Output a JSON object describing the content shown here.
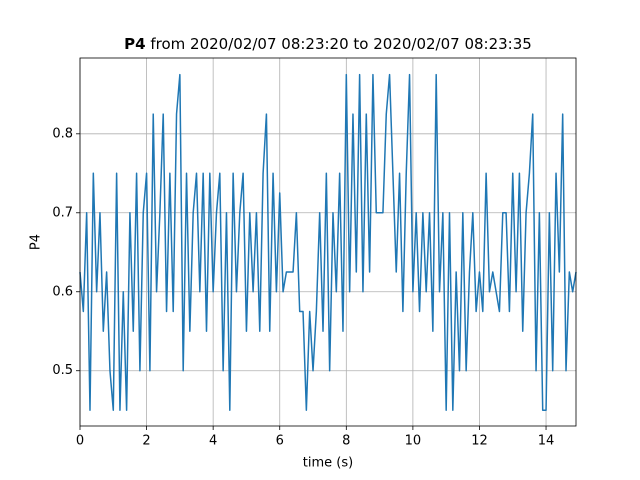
{
  "chart_data": {
    "type": "line",
    "title_bold": "P4",
    "title": "from 2020/02/07 08:23:20 to 2020/02/07 08:23:35",
    "xlabel": "time (s)",
    "ylabel": "P4",
    "x": [
      0,
      0.1,
      0.2,
      0.3,
      0.4,
      0.5,
      0.6,
      0.7,
      0.8,
      0.9,
      1,
      1.1,
      1.2,
      1.3,
      1.4,
      1.5,
      1.6,
      1.7,
      1.8,
      1.9,
      2,
      2.1,
      2.2,
      2.3,
      2.4,
      2.5,
      2.6,
      2.7,
      2.8,
      2.9,
      3,
      3.1,
      3.2,
      3.3,
      3.4,
      3.5,
      3.6,
      3.7,
      3.8,
      3.9,
      4,
      4.1,
      4.2,
      4.3,
      4.4,
      4.5,
      4.6,
      4.7,
      4.8,
      4.9,
      5,
      5.1,
      5.2,
      5.3,
      5.4,
      5.5,
      5.6,
      5.7,
      5.8,
      5.9,
      6,
      6.1,
      6.2,
      6.3,
      6.4,
      6.5,
      6.6,
      6.7,
      6.8,
      6.9,
      7,
      7.1,
      7.2,
      7.3,
      7.4,
      7.5,
      7.6,
      7.7,
      7.8,
      7.9,
      8,
      8.1,
      8.2,
      8.3,
      8.4,
      8.5,
      8.6,
      8.7,
      8.8,
      8.9,
      9,
      9.1,
      9.2,
      9.3,
      9.4,
      9.5,
      9.6,
      9.7,
      9.8,
      9.9,
      10,
      10.1,
      10.2,
      10.3,
      10.4,
      10.5,
      10.6,
      10.7,
      10.8,
      10.9,
      11,
      11.1,
      11.2,
      11.3,
      11.4,
      11.5,
      11.6,
      11.7,
      11.8,
      11.9,
      12,
      12.1,
      12.2,
      12.3,
      12.4,
      12.5,
      12.6,
      12.7,
      12.8,
      12.9,
      13,
      13.1,
      13.2,
      13.3,
      13.4,
      13.5,
      13.6,
      13.7,
      13.8,
      13.9,
      14,
      14.1,
      14.2,
      14.3,
      14.4,
      14.5,
      14.6,
      14.7,
      14.8,
      14.9
    ],
    "values": [
      0.625,
      0.575,
      0.7,
      0.45,
      0.75,
      0.6,
      0.7,
      0.55,
      0.625,
      0.5,
      0.45,
      0.75,
      0.45,
      0.6,
      0.45,
      0.7,
      0.55,
      0.75,
      0.5,
      0.7,
      0.75,
      0.5,
      0.825,
      0.6,
      0.7,
      0.825,
      0.575,
      0.75,
      0.575,
      0.825,
      0.875,
      0.5,
      0.75,
      0.55,
      0.7,
      0.75,
      0.6,
      0.75,
      0.55,
      0.75,
      0.6,
      0.7,
      0.75,
      0.5,
      0.7,
      0.45,
      0.75,
      0.6,
      0.7,
      0.75,
      0.55,
      0.7,
      0.6,
      0.7,
      0.55,
      0.75,
      0.825,
      0.55,
      0.75,
      0.6,
      0.725,
      0.6,
      0.625,
      0.625,
      0.625,
      0.7,
      0.575,
      0.575,
      0.45,
      0.575,
      0.5,
      0.575,
      0.7,
      0.55,
      0.75,
      0.5,
      0.7,
      0.6,
      0.75,
      0.55,
      0.875,
      0.6,
      0.825,
      0.625,
      0.875,
      0.6,
      0.825,
      0.625,
      0.875,
      0.7,
      0.7,
      0.7,
      0.825,
      0.875,
      0.75,
      0.625,
      0.75,
      0.575,
      0.75,
      0.875,
      0.6,
      0.7,
      0.575,
      0.7,
      0.6,
      0.7,
      0.55,
      0.875,
      0.6,
      0.7,
      0.45,
      0.7,
      0.45,
      0.625,
      0.5,
      0.7,
      0.5,
      0.625,
      0.7,
      0.575,
      0.625,
      0.575,
      0.75,
      0.6,
      0.625,
      0.6,
      0.575,
      0.7,
      0.7,
      0.575,
      0.75,
      0.6,
      0.75,
      0.55,
      0.7,
      0.75,
      0.825,
      0.5,
      0.7,
      0.45,
      0.45,
      0.7,
      0.5,
      0.75,
      0.625,
      0.825,
      0.5,
      0.625,
      0.6,
      0.625
    ],
    "color": "#1f77b4",
    "xlim": [
      0,
      14.9
    ],
    "ylim": [
      0.43,
      0.896
    ],
    "xticks": [
      0,
      2,
      4,
      6,
      8,
      10,
      12,
      14
    ],
    "yticks": [
      0.5,
      0.6,
      0.7,
      0.8
    ],
    "grid": true
  }
}
